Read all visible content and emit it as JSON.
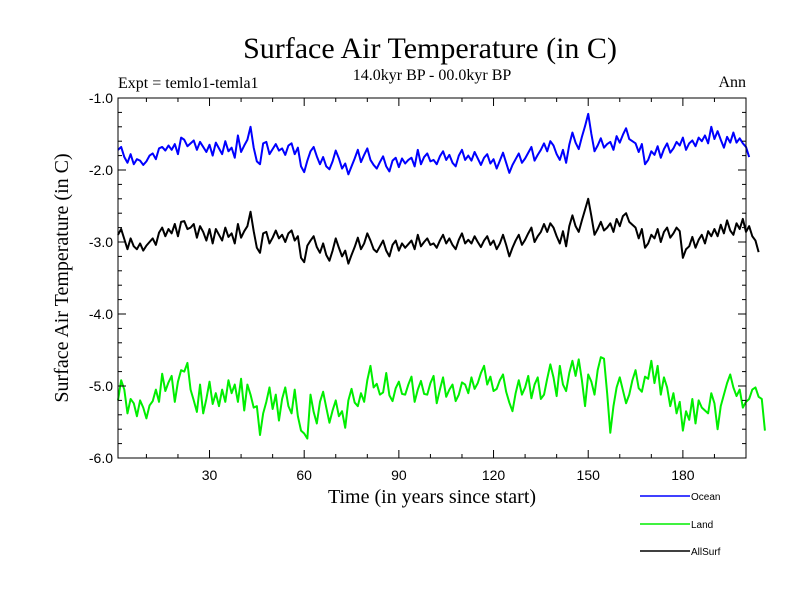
{
  "chart_data": {
    "type": "line",
    "title": "Surface Air Temperature (in C)",
    "experiment_label": "Expt = temlo1-temla1",
    "period_label": "14.0kyr BP - 00.0kyr BP",
    "season_label": "Ann",
    "xlabel": "Time (in years since start)",
    "ylabel": "Surface Air Temperature (in C)",
    "xlim": [
      1,
      200
    ],
    "ylim": [
      -6.0,
      -1.0
    ],
    "x_ticks": [
      30,
      60,
      90,
      120,
      150,
      180
    ],
    "x_tick_labels": [
      "30",
      "60",
      "90",
      "120",
      "150",
      "180"
    ],
    "y_ticks": [
      -1.0,
      -2.0,
      -3.0,
      -4.0,
      -5.0,
      -6.0
    ],
    "y_tick_labels": [
      "-1.0",
      "-2.0",
      "-3.0",
      "-4.0",
      "-5.0",
      "-6.0"
    ],
    "legend_position": "bottom-right",
    "series": [
      {
        "name": "Ocean",
        "color": "#0000ff",
        "x_start": 1,
        "values": [
          -1.72,
          -1.68,
          -1.82,
          -1.9,
          -1.78,
          -1.92,
          -1.85,
          -1.87,
          -1.93,
          -1.88,
          -1.8,
          -1.77,
          -1.85,
          -1.7,
          -1.68,
          -1.73,
          -1.66,
          -1.72,
          -1.64,
          -1.78,
          -1.55,
          -1.58,
          -1.67,
          -1.63,
          -1.59,
          -1.72,
          -1.61,
          -1.68,
          -1.75,
          -1.65,
          -1.8,
          -1.62,
          -1.7,
          -1.78,
          -1.6,
          -1.74,
          -1.69,
          -1.83,
          -1.52,
          -1.75,
          -1.66,
          -1.58,
          -1.4,
          -1.69,
          -1.88,
          -1.92,
          -1.63,
          -1.61,
          -1.78,
          -1.71,
          -1.64,
          -1.73,
          -1.7,
          -1.79,
          -1.66,
          -1.63,
          -1.78,
          -1.69,
          -1.95,
          -2.03,
          -1.87,
          -1.74,
          -1.68,
          -1.81,
          -1.92,
          -1.82,
          -1.95,
          -1.99,
          -1.88,
          -1.73,
          -1.84,
          -1.98,
          -1.91,
          -2.06,
          -1.95,
          -1.84,
          -1.72,
          -1.89,
          -1.79,
          -1.7,
          -1.86,
          -1.93,
          -1.98,
          -1.89,
          -1.81,
          -1.95,
          -2.02,
          -1.87,
          -1.83,
          -1.96,
          -1.84,
          -1.91,
          -1.86,
          -1.83,
          -1.95,
          -1.72,
          -1.92,
          -1.82,
          -1.77,
          -1.88,
          -1.86,
          -1.92,
          -1.81,
          -1.74,
          -1.86,
          -1.79,
          -1.9,
          -1.95,
          -1.8,
          -1.72,
          -1.86,
          -1.8,
          -1.87,
          -1.75,
          -1.84,
          -1.93,
          -1.83,
          -1.78,
          -1.91,
          -1.85,
          -1.98,
          -1.87,
          -1.76,
          -1.9,
          -2.04,
          -1.93,
          -1.85,
          -1.77,
          -1.9,
          -1.84,
          -1.76,
          -1.68,
          -1.87,
          -1.79,
          -1.72,
          -1.63,
          -1.74,
          -1.6,
          -1.66,
          -1.78,
          -1.86,
          -1.72,
          -1.9,
          -1.65,
          -1.48,
          -1.62,
          -1.71,
          -1.54,
          -1.39,
          -1.22,
          -1.5,
          -1.74,
          -1.66,
          -1.56,
          -1.69,
          -1.64,
          -1.61,
          -1.72,
          -1.53,
          -1.62,
          -1.51,
          -1.42,
          -1.57,
          -1.6,
          -1.63,
          -1.75,
          -1.64,
          -1.92,
          -1.86,
          -1.74,
          -1.79,
          -1.67,
          -1.83,
          -1.71,
          -1.63,
          -1.76,
          -1.7,
          -1.61,
          -1.66,
          -1.55,
          -1.72,
          -1.63,
          -1.59,
          -1.67,
          -1.55,
          -1.6,
          -1.52,
          -1.63,
          -1.4,
          -1.57,
          -1.46,
          -1.58,
          -1.69,
          -1.54,
          -1.62,
          -1.48,
          -1.62,
          -1.56,
          -1.63,
          -1.68,
          -1.82
        ]
      },
      {
        "name": "Land",
        "color": "#00ee00",
        "x_start": 1,
        "values": [
          -5.2,
          -4.92,
          -5.05,
          -5.38,
          -5.18,
          -5.24,
          -5.42,
          -5.2,
          -5.3,
          -5.45,
          -5.27,
          -5.21,
          -5.05,
          -5.22,
          -4.83,
          -5.07,
          -4.95,
          -4.86,
          -5.22,
          -4.94,
          -4.78,
          -4.8,
          -4.68,
          -5.05,
          -5.2,
          -5.36,
          -4.98,
          -5.38,
          -5.18,
          -4.94,
          -5.25,
          -5.1,
          -5.28,
          -5.05,
          -5.22,
          -4.92,
          -5.1,
          -4.98,
          -5.22,
          -4.9,
          -5.34,
          -4.98,
          -5.12,
          -5.3,
          -5.28,
          -5.68,
          -5.38,
          -5.22,
          -5.02,
          -5.32,
          -5.12,
          -5.48,
          -5.18,
          -5.02,
          -5.28,
          -5.38,
          -5.05,
          -5.42,
          -5.62,
          -5.66,
          -5.73,
          -5.12,
          -5.36,
          -5.52,
          -5.22,
          -5.08,
          -5.3,
          -5.51,
          -5.34,
          -5.2,
          -5.42,
          -5.35,
          -5.58,
          -5.2,
          -5.04,
          -5.23,
          -5.28,
          -5.1,
          -5.22,
          -4.92,
          -4.72,
          -5.02,
          -4.97,
          -5.12,
          -5.09,
          -4.82,
          -5.13,
          -5.21,
          -5.03,
          -4.94,
          -5.11,
          -5.12,
          -4.98,
          -4.87,
          -5.22,
          -5.05,
          -4.93,
          -5.11,
          -5.12,
          -4.96,
          -4.86,
          -5.24,
          -5.05,
          -4.88,
          -5.15,
          -5.05,
          -4.98,
          -5.21,
          -5.12,
          -4.95,
          -4.98,
          -5.1,
          -4.88,
          -5.04,
          -4.96,
          -4.82,
          -4.72,
          -4.98,
          -4.87,
          -5.07,
          -5.04,
          -4.92,
          -4.84,
          -5.08,
          -5.23,
          -5.35,
          -5.1,
          -4.92,
          -5.12,
          -5.02,
          -4.86,
          -5.17,
          -4.98,
          -4.88,
          -5.18,
          -5.12,
          -4.9,
          -4.7,
          -4.88,
          -5.14,
          -4.72,
          -4.98,
          -5.07,
          -4.82,
          -4.65,
          -4.86,
          -4.63,
          -4.92,
          -5.28,
          -4.84,
          -4.94,
          -5.12,
          -4.78,
          -4.6,
          -4.62,
          -5.1,
          -5.65,
          -5.28,
          -5.02,
          -4.88,
          -5.06,
          -5.24,
          -5.12,
          -4.92,
          -4.78,
          -5.03,
          -5.08,
          -4.87,
          -4.9,
          -4.65,
          -4.96,
          -4.72,
          -5.12,
          -4.88,
          -5.02,
          -5.28,
          -5.1,
          -5.38,
          -5.22,
          -5.62,
          -5.35,
          -5.47,
          -5.18,
          -5.52,
          -5.2,
          -5.3,
          -5.34,
          -5.38,
          -5.1,
          -5.24,
          -5.6,
          -5.28,
          -5.12,
          -4.96,
          -4.84,
          -5.02,
          -5.14,
          -5.05,
          -5.3,
          -5.22,
          -5.18,
          -5.05,
          -5.02,
          -5.15,
          -5.18,
          -5.62
        ]
      },
      {
        "name": "AllSurf",
        "color": "#000000",
        "x_start": 1,
        "values": [
          -2.9,
          -2.82,
          -2.96,
          -3.1,
          -2.95,
          -3.06,
          -3.1,
          -3.02,
          -3.12,
          -3.05,
          -3.0,
          -2.95,
          -3.04,
          -2.87,
          -2.8,
          -2.92,
          -2.82,
          -2.88,
          -2.75,
          -2.92,
          -2.72,
          -2.71,
          -2.82,
          -2.8,
          -2.75,
          -2.94,
          -2.78,
          -2.86,
          -2.98,
          -2.82,
          -3.02,
          -2.82,
          -2.9,
          -2.98,
          -2.8,
          -2.93,
          -2.88,
          -3.02,
          -2.75,
          -2.94,
          -2.85,
          -2.78,
          -2.58,
          -2.85,
          -3.08,
          -3.15,
          -2.88,
          -2.86,
          -3.02,
          -2.94,
          -2.84,
          -2.95,
          -2.9,
          -3.0,
          -2.88,
          -2.84,
          -2.98,
          -2.92,
          -3.22,
          -3.28,
          -3.05,
          -2.98,
          -2.92,
          -3.07,
          -3.15,
          -3.02,
          -3.18,
          -3.26,
          -3.12,
          -2.95,
          -3.08,
          -3.2,
          -3.12,
          -3.3,
          -3.18,
          -3.07,
          -2.94,
          -3.1,
          -3.02,
          -2.88,
          -2.98,
          -3.1,
          -3.14,
          -3.06,
          -2.98,
          -3.12,
          -3.2,
          -3.04,
          -2.98,
          -3.12,
          -3.02,
          -3.08,
          -3.03,
          -2.98,
          -3.1,
          -2.9,
          -3.06,
          -3.0,
          -2.95,
          -3.04,
          -3.02,
          -3.08,
          -2.98,
          -2.9,
          -3.02,
          -2.95,
          -3.04,
          -3.1,
          -2.97,
          -2.88,
          -3.02,
          -2.97,
          -3.02,
          -2.92,
          -3.0,
          -3.07,
          -2.98,
          -2.92,
          -3.04,
          -2.98,
          -3.1,
          -3.02,
          -2.9,
          -3.04,
          -3.2,
          -3.08,
          -2.98,
          -2.9,
          -3.04,
          -2.97,
          -2.88,
          -2.8,
          -3.0,
          -2.92,
          -2.86,
          -2.75,
          -2.86,
          -2.74,
          -2.8,
          -2.92,
          -3.02,
          -2.85,
          -3.06,
          -2.78,
          -2.63,
          -2.78,
          -2.86,
          -2.7,
          -2.55,
          -2.4,
          -2.64,
          -2.9,
          -2.82,
          -2.72,
          -2.84,
          -2.8,
          -2.74,
          -2.86,
          -2.68,
          -2.78,
          -2.64,
          -2.6,
          -2.72,
          -2.76,
          -2.8,
          -2.95,
          -2.82,
          -3.08,
          -3.02,
          -2.9,
          -2.95,
          -2.82,
          -3.0,
          -2.86,
          -2.8,
          -2.94,
          -2.88,
          -2.8,
          -2.85,
          -3.22,
          -3.1,
          -3.06,
          -2.93,
          -3.08,
          -2.97,
          -2.9,
          -3.02,
          -2.85,
          -2.92,
          -2.82,
          -2.92,
          -2.76,
          -2.88,
          -2.7,
          -2.84,
          -2.9,
          -2.74,
          -2.82,
          -2.68,
          -2.86,
          -2.78,
          -2.92,
          -2.98,
          -3.14
        ]
      }
    ]
  }
}
